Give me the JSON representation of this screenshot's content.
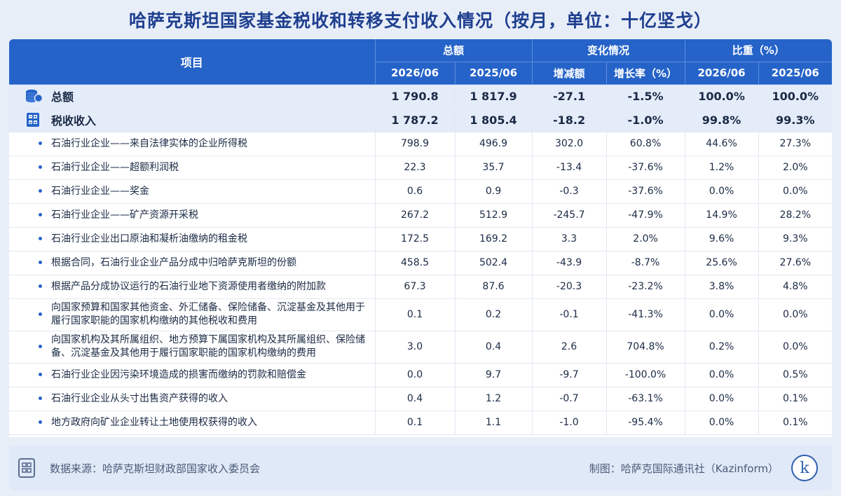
{
  "title": "哈萨克斯坦国家基金税收和转移支付收入情况（按月，单位：十亿坚戈）",
  "header": {
    "item": "项目",
    "groups": [
      "总额",
      "变化情况",
      "比重（%）"
    ],
    "sub": [
      "2026/06",
      "2025/06",
      "增减额",
      "增长率（%）",
      "2026/06",
      "2025/06"
    ]
  },
  "main_rows": [
    {
      "icon": "coins-icon",
      "label": "总额",
      "values": [
        "1 790.8",
        "1 817.9",
        "-27.1",
        "-1.5%",
        "100.0%",
        "100.0%"
      ]
    },
    {
      "icon": "calculator-icon",
      "label": "税收收入",
      "values": [
        "1 787.2",
        "1 805.4",
        "-18.2",
        "-1.0%",
        "99.8%",
        "99.3%"
      ]
    }
  ],
  "rows": [
    {
      "label": "石油行业企业——来自法律实体的企业所得税",
      "values": [
        "798.9",
        "496.9",
        "302.0",
        "60.8%",
        "44.6%",
        "27.3%"
      ]
    },
    {
      "label": "石油行业企业——超额利润税",
      "values": [
        "22.3",
        "35.7",
        "-13.4",
        "-37.6%",
        "1.2%",
        "2.0%"
      ]
    },
    {
      "label": "石油行业企业——奖金",
      "values": [
        "0.6",
        "0.9",
        "-0.3",
        "-37.6%",
        "0.0%",
        "0.0%"
      ]
    },
    {
      "label": "石油行业企业——矿产资源开采税",
      "values": [
        "267.2",
        "512.9",
        "-245.7",
        "-47.9%",
        "14.9%",
        "28.2%"
      ]
    },
    {
      "label": "石油行业企业出口原油和凝析油缴纳的租金税",
      "values": [
        "172.5",
        "169.2",
        "3.3",
        "2.0%",
        "9.6%",
        "9.3%"
      ]
    },
    {
      "label": "根据合同，石油行业企业产品分成中归哈萨克斯坦的份额",
      "values": [
        "458.5",
        "502.4",
        "-43.9",
        "-8.7%",
        "25.6%",
        "27.6%"
      ]
    },
    {
      "label": "根据产品分成协议运行的石油行业地下资源使用者缴纳的附加款",
      "values": [
        "67.3",
        "87.6",
        "-20.3",
        "-23.2%",
        "3.8%",
        "4.8%"
      ]
    },
    {
      "label": "向国家预算和国家其他资金、外汇储备、保险储备、沉淀基金及其他用于履行国家职能的国家机构缴纳的其他税收和费用",
      "values": [
        "0.1",
        "0.2",
        "-0.1",
        "-41.3%",
        "0.0%",
        "0.0%"
      ]
    },
    {
      "label": "向国家机构及其所属组织、地方预算下属国家机构及其所属组织、保险储备、沉淀基金及其他用于履行国家职能的国家机构缴纳的费用",
      "values": [
        "3.0",
        "0.4",
        "2.6",
        "704.8%",
        "0.2%",
        "0.0%"
      ]
    },
    {
      "label": "石油行业企业因污染环境造成的损害而缴纳的罚款和赔偿金",
      "values": [
        "0.0",
        "9.7",
        "-9.7",
        "-100.0%",
        "0.0%",
        "0.5%"
      ]
    },
    {
      "label": "石油行业企业从头寸出售资产获得的收入",
      "values": [
        "0.4",
        "1.2",
        "-0.7",
        "-63.1%",
        "0.0%",
        "0.1%"
      ]
    },
    {
      "label": "地方政府向矿业企业转让土地使用权获得的收入",
      "values": [
        "0.1",
        "1.1",
        "-1.0",
        "-95.4%",
        "0.0%",
        "0.1%"
      ]
    }
  ],
  "footer": {
    "source": "数据来源：哈萨克斯坦财政部国家收入委员会",
    "credit": "制图：哈萨克国际通讯社（Kazinform）",
    "logo": "k"
  }
}
